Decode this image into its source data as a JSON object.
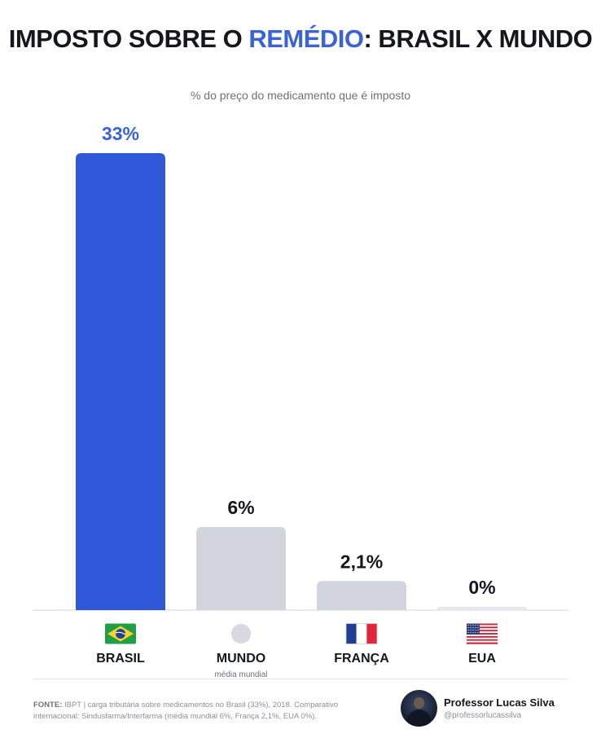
{
  "header": {
    "title_part1": "IMPOSTO SOBRE O ",
    "title_accent": "REMÉDIO",
    "title_part2": ": BRASIL X MUNDO",
    "subtitle": "% do preço do medicamento que é imposto"
  },
  "colors": {
    "accent": "#3a63d6",
    "bar_brasil": "#3158d8",
    "bar_other": "#d3d5de",
    "dark_text": "#15171f"
  },
  "chart_data": {
    "type": "bar",
    "title": "IMPOSTO SOBRE O REMÉDIO: BRASIL X MUNDO",
    "subtitle": "% do preço do medicamento que é imposto",
    "unit": "%",
    "ylim": [
      0,
      33
    ],
    "grid": false,
    "categories": [
      "BRASIL",
      "MUNDO",
      "FRANÇA",
      "EUA"
    ],
    "category_sublabels": [
      "",
      "média mundial",
      "",
      ""
    ],
    "values": [
      33,
      6,
      2.1,
      0
    ],
    "value_labels": [
      "33%",
      "6%",
      "2,1%",
      "0%"
    ],
    "flags": [
      "brazil-flag-icon",
      "world-dot-icon",
      "france-flag-icon",
      "usa-flag-icon"
    ],
    "highlight_index": 0
  },
  "footer": {
    "source_label": "FONTE:",
    "source_text": " IBPT | carga tributária sobre medicamentos no Brasil (33%), 2018. Comparativo internacional: Sindusfarma/Interfarma (média mundial 6%, França 2,1%, EUA 0%).",
    "author_name": "Professor Lucas Silva",
    "author_handle": "@professorlucassilva"
  }
}
